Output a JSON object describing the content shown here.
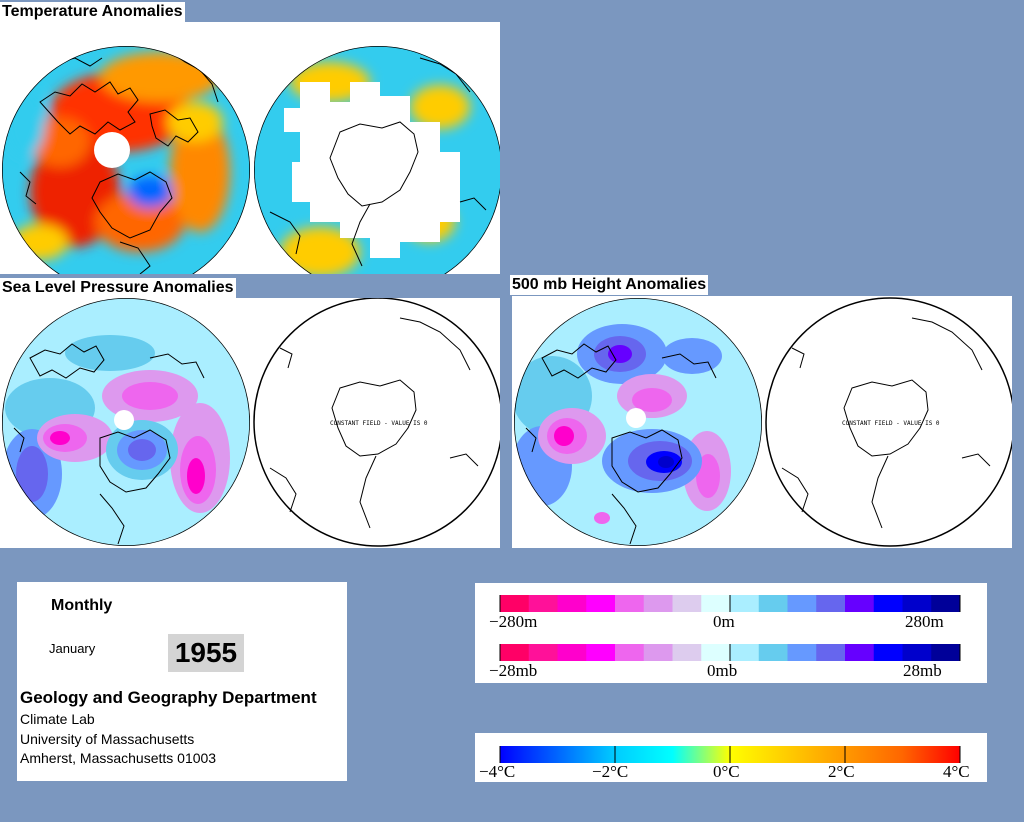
{
  "panels": {
    "temperature": {
      "title": "Temperature Anomalies"
    },
    "slp": {
      "title": "Sea Level Pressure Anomalies",
      "constant_field_text": "CONSTANT FIELD - VALUE IS 0"
    },
    "height500": {
      "title": "500 mb Height Anomalies",
      "constant_field_text": "CONSTANT FIELD - VALUE IS 0"
    }
  },
  "info": {
    "frequency": "Monthly",
    "month": "January",
    "year": "1955",
    "department": "Geology and Geography Department",
    "lines": [
      "Climate Lab",
      "University of Massachusetts",
      "Amherst, Massachusetts 01003"
    ]
  },
  "legends": {
    "height": {
      "labels": [
        "−280m",
        "0m",
        "280m"
      ],
      "colors": [
        "#ff0066",
        "#ff1199",
        "#ff00cc",
        "#ff00ff",
        "#ee66ee",
        "#dd99ee",
        "#ddccee",
        "#ddffff",
        "#aaeeff",
        "#66ccee",
        "#6699ff",
        "#6666ee",
        "#6600ff",
        "#0000ff",
        "#0000cc",
        "#000099"
      ]
    },
    "pressure": {
      "labels": [
        "−28mb",
        "0mb",
        "28mb"
      ],
      "colors": [
        "#ff0066",
        "#ff1199",
        "#ff00cc",
        "#ff00ff",
        "#ee66ee",
        "#dd99ee",
        "#ddccee",
        "#ddffff",
        "#aaeeff",
        "#66ccee",
        "#6699ff",
        "#6666ee",
        "#6600ff",
        "#0000ff",
        "#0000cc",
        "#000099"
      ]
    },
    "temperature": {
      "labels": [
        "−4°C",
        "−2°C",
        "0°C",
        "2°C",
        "4°C"
      ],
      "gradient_stops": [
        "#0000ff",
        "#0066ff",
        "#00ccff",
        "#00ffff",
        "#ffff00",
        "#ffcc00",
        "#ff9900",
        "#ff6600",
        "#ff0000"
      ]
    }
  }
}
